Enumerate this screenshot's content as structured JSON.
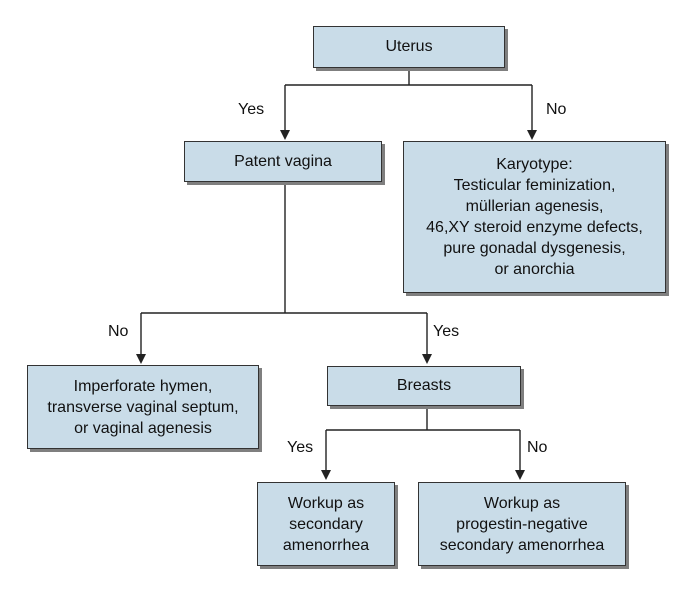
{
  "nodes": {
    "uterus": {
      "lines": [
        "Uterus"
      ]
    },
    "patent_vagina": {
      "lines": [
        "Patent vagina"
      ]
    },
    "karyotype": {
      "lines": [
        "Karyotype:",
        "Testicular feminization,",
        "müllerian agenesis,",
        "46,XY steroid enzyme defects,",
        "pure gonadal dysgenesis,",
        "or anorchia"
      ]
    },
    "imperforate": {
      "lines": [
        "Imperforate hymen,",
        "transverse vaginal septum,",
        "or vaginal agenesis"
      ]
    },
    "breasts": {
      "lines": [
        "Breasts"
      ]
    },
    "workup_secondary": {
      "lines": [
        "Workup as",
        "secondary",
        "amenorrhea"
      ]
    },
    "workup_progestin": {
      "lines": [
        "Workup as",
        "progestin-negative",
        "secondary amenorrhea"
      ]
    }
  },
  "edge_labels": {
    "uterus_yes": "Yes",
    "uterus_no": "No",
    "vagina_no": "No",
    "vagina_yes": "Yes",
    "breasts_yes": "Yes",
    "breasts_no": "No"
  },
  "colors": {
    "box_fill": "#c9dce8",
    "box_border": "#333333",
    "box_shadow": "#7f7f7f",
    "line": "#222222"
  }
}
